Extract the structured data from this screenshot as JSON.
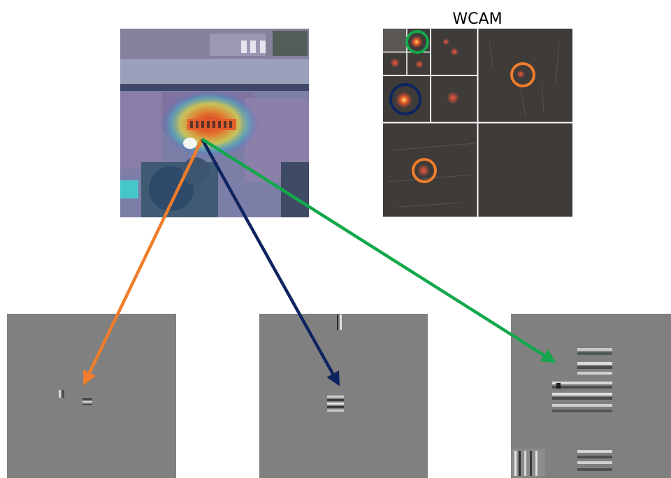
{
  "title": "WCAM",
  "colors": {
    "orange": "#ef7d2b",
    "navy": "#0e2360",
    "green": "#12a84b",
    "panel_gray": "#808080",
    "wcam_bg": "#3e3b39",
    "heat_red": "#e8402f"
  },
  "images": {
    "source": "aerial-image-with-heatmap",
    "wcam": "wavelet-decomposition-map",
    "reconstructions": [
      "reconstruction-orange",
      "reconstruction-navy",
      "reconstruction-green"
    ]
  },
  "arrows": [
    "orange",
    "navy",
    "green"
  ]
}
